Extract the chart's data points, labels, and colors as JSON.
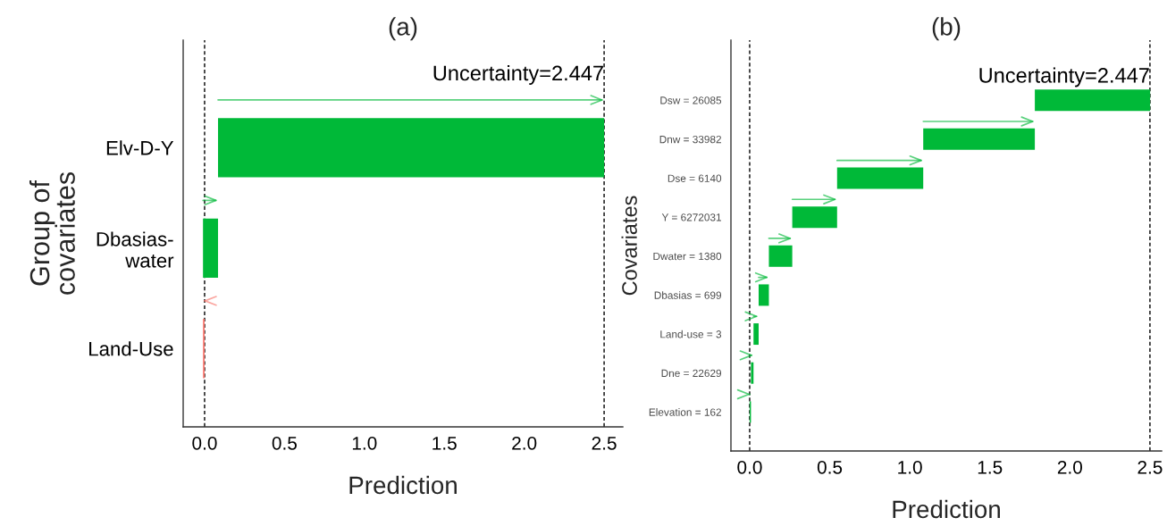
{
  "chart_data": [
    {
      "type": "bar",
      "orientation": "horizontal",
      "title": "(a)",
      "xlabel": "Prediction",
      "ylabel": "Group of\ncovariates",
      "categories": [
        "Elv-D-Y",
        "Dbasias-\nwater",
        "Land-Use"
      ],
      "values": [
        2.416,
        0.094,
        -0.01
      ],
      "base": [
        0.084,
        -0.01,
        0
      ],
      "annotations": [
        "Uncertainty=2.447"
      ],
      "colors": [
        "#00b938",
        "#00b938",
        "#f8766d"
      ],
      "xlim": [
        -0.134,
        2.617
      ],
      "xticks": [
        {
          "value": 0,
          "label": "0.0"
        },
        {
          "value": 0.5,
          "label": "0.5"
        },
        {
          "value": 1,
          "label": "1.0"
        },
        {
          "value": 1.5,
          "label": "1.5"
        },
        {
          "value": 2,
          "label": "2.0"
        },
        {
          "value": 2.5,
          "label": "2.5"
        }
      ],
      "ref_lines": [
        {
          "axis": "x",
          "value": 2.5,
          "line_style": "dashed",
          "color": "#000000"
        },
        {
          "axis": "x",
          "value": 0,
          "line_style": "dashed",
          "color": "#000000"
        }
      ],
      "grid": false,
      "legend": false
    },
    {
      "type": "bar",
      "orientation": "horizontal",
      "title": "(b)",
      "xlabel": "Prediction",
      "ylabel": "Covariates",
      "categories": [
        "Dsw = 26085",
        "Dnw = 33982",
        "Dse = 6140",
        "Y = 6272031",
        "Dwater = 1380",
        "Dbasias = 699",
        "Land-use = 3",
        "Dne = 22629",
        "Elevation = 162"
      ],
      "values": [
        0.72,
        0.697,
        0.538,
        0.28,
        0.146,
        0.064,
        0.032,
        0.016,
        0.008
      ],
      "base": [
        1.781,
        1.084,
        0.546,
        0.266,
        0.12,
        0.056,
        0.024,
        0.008,
        0
      ],
      "annotations": [
        "Uncertainty=2.447"
      ],
      "colors": [
        "#00b938",
        "#00b938",
        "#00b938",
        "#00b938",
        "#00b938",
        "#00b938",
        "#00b938",
        "#00b938",
        "#00b938"
      ],
      "xlim": [
        -0.117,
        2.573
      ],
      "xticks": [
        {
          "value": 0,
          "label": "0.0"
        },
        {
          "value": 0.5,
          "label": "0.5"
        },
        {
          "value": 1,
          "label": "1.0"
        },
        {
          "value": 1.5,
          "label": "1.5"
        },
        {
          "value": 2,
          "label": "2.0"
        },
        {
          "value": 2.5,
          "label": "2.5"
        }
      ],
      "ref_lines": [
        {
          "axis": "x",
          "value": 2.5,
          "line_style": "dashed",
          "color": "#000000"
        },
        {
          "axis": "x",
          "value": 0,
          "line_style": "dashed",
          "color": "#000000"
        }
      ],
      "grid": false,
      "legend": false
    }
  ]
}
